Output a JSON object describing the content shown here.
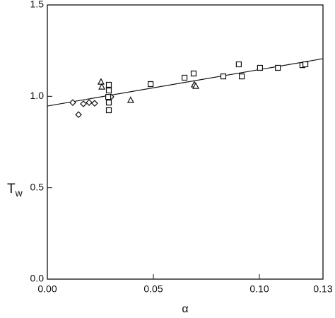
{
  "chart_data": {
    "type": "scatter",
    "xlabel": "α",
    "ylabel": {
      "main": "T",
      "sub": "w"
    },
    "xlim": [
      0,
      0.13
    ],
    "ylim": [
      0,
      1.5
    ],
    "xticks": [
      {
        "value": 0,
        "label": "0.00"
      },
      0.05,
      {
        "value": 0.1,
        "label": "0.10"
      },
      0.13
    ],
    "yticks": [
      {
        "value": 0,
        "label": "0.0"
      },
      0.5,
      {
        "value": 1,
        "label": "1.0"
      },
      {
        "value": 1.5,
        "label": "1.5"
      }
    ],
    "series": [
      {
        "marker": "diamond",
        "color": "#111111",
        "x": [
          0.012,
          0.0147,
          0.017,
          0.0197,
          0.0223,
          0.03
        ],
        "values": [
          0.966,
          0.9,
          0.959,
          0.966,
          0.962,
          0.997
        ]
      },
      {
        "marker": "square",
        "color": "#111111",
        "x": [
          0.029,
          0.029,
          0.0287,
          0.029,
          0.029,
          0.0487,
          0.0647,
          0.069,
          0.083,
          0.0903,
          0.0917,
          0.1003,
          0.1087,
          0.1203,
          0.1217
        ],
        "values": [
          1.063,
          1.032,
          0.997,
          0.966,
          0.924,
          1.067,
          1.102,
          1.125,
          1.109,
          1.175,
          1.109,
          1.156,
          1.156,
          1.171,
          1.175
        ]
      },
      {
        "marker": "triangle",
        "color": "#111111",
        "x": [
          0.0253,
          0.0257,
          0.0393,
          0.0693,
          0.07
        ],
        "values": [
          1.078,
          1.051,
          0.978,
          1.063,
          1.055
        ]
      }
    ],
    "fit": {
      "color": "#111111",
      "x": [
        0,
        0.13
      ],
      "values": [
        0.947,
        1.206
      ]
    }
  }
}
